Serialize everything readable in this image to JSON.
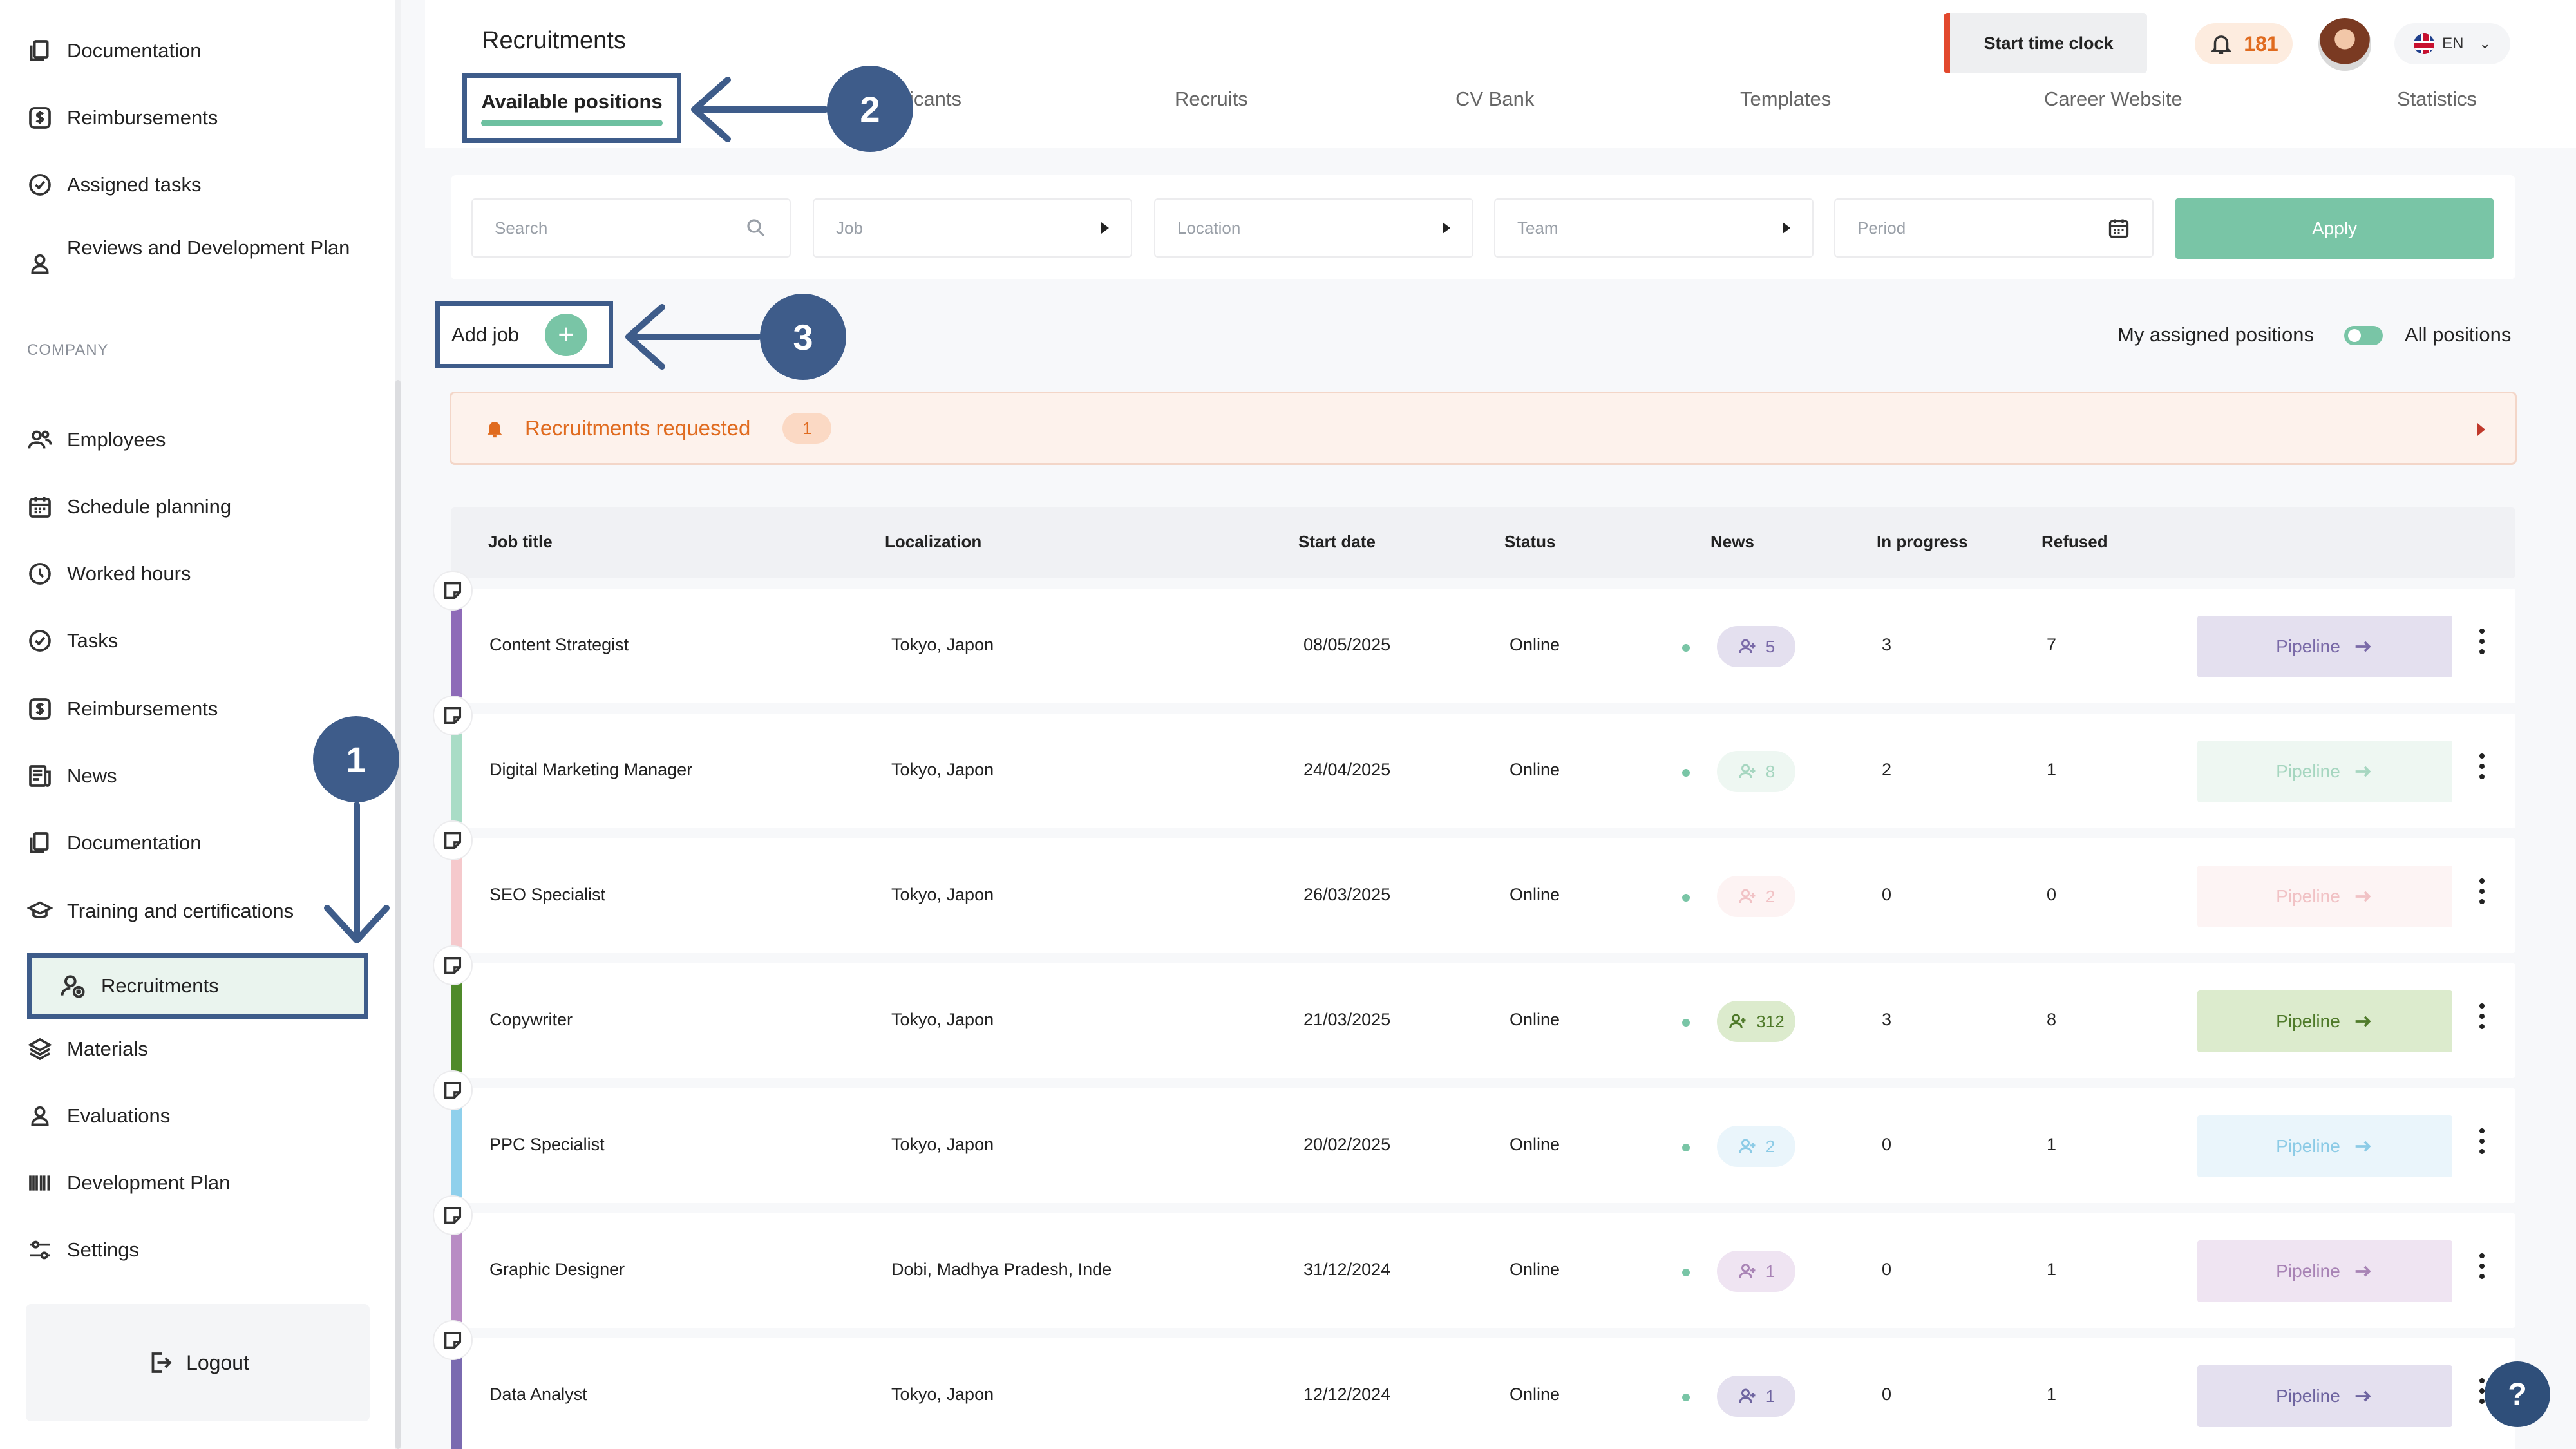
{
  "sidebar": {
    "top_items": [
      {
        "label": "Documentation",
        "icon": "documents-icon"
      },
      {
        "label": "Reimbursements",
        "icon": "dollar-icon"
      },
      {
        "label": "Assigned tasks",
        "icon": "check-circle-icon"
      },
      {
        "label": "Reviews and Development Plan",
        "icon": "person-icon"
      }
    ],
    "company_label": "COMPANY",
    "company_items": [
      {
        "label": "Employees",
        "icon": "people-icon"
      },
      {
        "label": "Schedule planning",
        "icon": "calendar-icon"
      },
      {
        "label": "Worked hours",
        "icon": "clock-icon"
      },
      {
        "label": "Tasks",
        "icon": "check-circle-icon"
      },
      {
        "label": "Reimbursements",
        "icon": "dollar-icon"
      },
      {
        "label": "News",
        "icon": "news-icon"
      },
      {
        "label": "Documentation",
        "icon": "documents-icon"
      },
      {
        "label": "Training and certifications",
        "icon": "graduation-cap-icon"
      },
      {
        "label": "Recruitments",
        "icon": "user-add-icon",
        "active": true
      },
      {
        "label": "Materials",
        "icon": "layers-icon"
      },
      {
        "label": "Evaluations",
        "icon": "person-icon"
      },
      {
        "label": "Development Plan",
        "icon": "barcode-icon"
      },
      {
        "label": "Settings",
        "icon": "sliders-icon"
      }
    ],
    "logout_label": "Logout"
  },
  "header": {
    "title": "Recruitments",
    "start_clock_label": "Start time clock",
    "notification_count": "181",
    "language": "EN"
  },
  "tabs": [
    {
      "label": "Available positions",
      "active": true
    },
    {
      "label": "icants"
    },
    {
      "label": "Recruits"
    },
    {
      "label": "CV Bank"
    },
    {
      "label": "Templates"
    },
    {
      "label": "Career Website"
    },
    {
      "label": "Statistics"
    }
  ],
  "filters": {
    "search_placeholder": "Search",
    "job": "Job",
    "location": "Location",
    "team": "Team",
    "period": "Period",
    "apply_label": "Apply"
  },
  "toolbar": {
    "add_job_label": "Add job",
    "assigned_label": "My assigned positions",
    "all_label": "All positions"
  },
  "requested": {
    "label": "Recruitments requested",
    "count": "1"
  },
  "table": {
    "columns": [
      "Job title",
      "Localization",
      "Start date",
      "Status",
      "News",
      "In progress",
      "Refused"
    ],
    "pipeline_label": "Pipeline",
    "rows": [
      {
        "title": "Content Strategist",
        "location": "Tokyo, Japon",
        "start": "08/05/2025",
        "status": "Online",
        "news": "5",
        "in_progress": "3",
        "refused": "7",
        "color": "#8e6bb8",
        "pill_bg": "#e4e0ef",
        "pill_fg": "#7a6aa8",
        "btn_bg": "#e4e0ef",
        "btn_fg": "#7a6aa8"
      },
      {
        "title": "Digital Marketing Manager",
        "location": "Tokyo, Japon",
        "start": "24/04/2025",
        "status": "Online",
        "news": "8",
        "in_progress": "2",
        "refused": "1",
        "color": "#a9dcc6",
        "pill_bg": "#eef7f2",
        "pill_fg": "#a6d6c0",
        "btn_bg": "#eef7f2",
        "btn_fg": "#a6d6c0"
      },
      {
        "title": "SEO Specialist",
        "location": "Tokyo, Japon",
        "start": "26/03/2025",
        "status": "Online",
        "news": "2",
        "in_progress": "0",
        "refused": "0",
        "color": "#f5c9cc",
        "pill_bg": "#fdf3f3",
        "pill_fg": "#f1c2c5",
        "btn_bg": "#fdf4f4",
        "btn_fg": "#f1c2c5"
      },
      {
        "title": "Copywriter",
        "location": "Tokyo, Japon",
        "start": "21/03/2025",
        "status": "Online",
        "news": "312",
        "in_progress": "3",
        "refused": "8",
        "color": "#4f8a2a",
        "pill_bg": "#dcebcd",
        "pill_fg": "#4f7a2a",
        "btn_bg": "#dcebcd",
        "btn_fg": "#4f7a2a"
      },
      {
        "title": "PPC Specialist",
        "location": "Tokyo, Japon",
        "start": "20/02/2025",
        "status": "Online",
        "news": "2",
        "in_progress": "0",
        "refused": "1",
        "color": "#8fd0ec",
        "pill_bg": "#eaf5fb",
        "pill_fg": "#8ccbe6",
        "btn_bg": "#eaf5fb",
        "btn_fg": "#8ccbe6"
      },
      {
        "title": "Graphic Designer",
        "location": "Dobi, Madhya Pradesh, Inde",
        "start": "31/12/2024",
        "status": "Online",
        "news": "1",
        "in_progress": "0",
        "refused": "1",
        "color": "#b88cc4",
        "pill_bg": "#efe4f2",
        "pill_fg": "#a883b5",
        "btn_bg": "#efe4f2",
        "btn_fg": "#a883b5"
      },
      {
        "title": "Data Analyst",
        "location": "Tokyo, Japon",
        "start": "12/12/2024",
        "status": "Online",
        "news": "1",
        "in_progress": "0",
        "refused": "1",
        "color": "#7a6ab0",
        "pill_bg": "#e4e0ef",
        "pill_fg": "#6e64a0",
        "btn_bg": "#e4e0ef",
        "btn_fg": "#6e64a0"
      }
    ]
  },
  "annotations": {
    "step1": "1",
    "step2": "2",
    "step3": "3"
  },
  "help_label": "?"
}
